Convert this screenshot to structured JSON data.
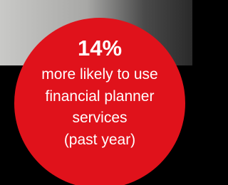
{
  "stat": {
    "value": "14%",
    "description_lines": [
      "more likely to use",
      "financial planner",
      "services",
      "(past year)"
    ]
  }
}
